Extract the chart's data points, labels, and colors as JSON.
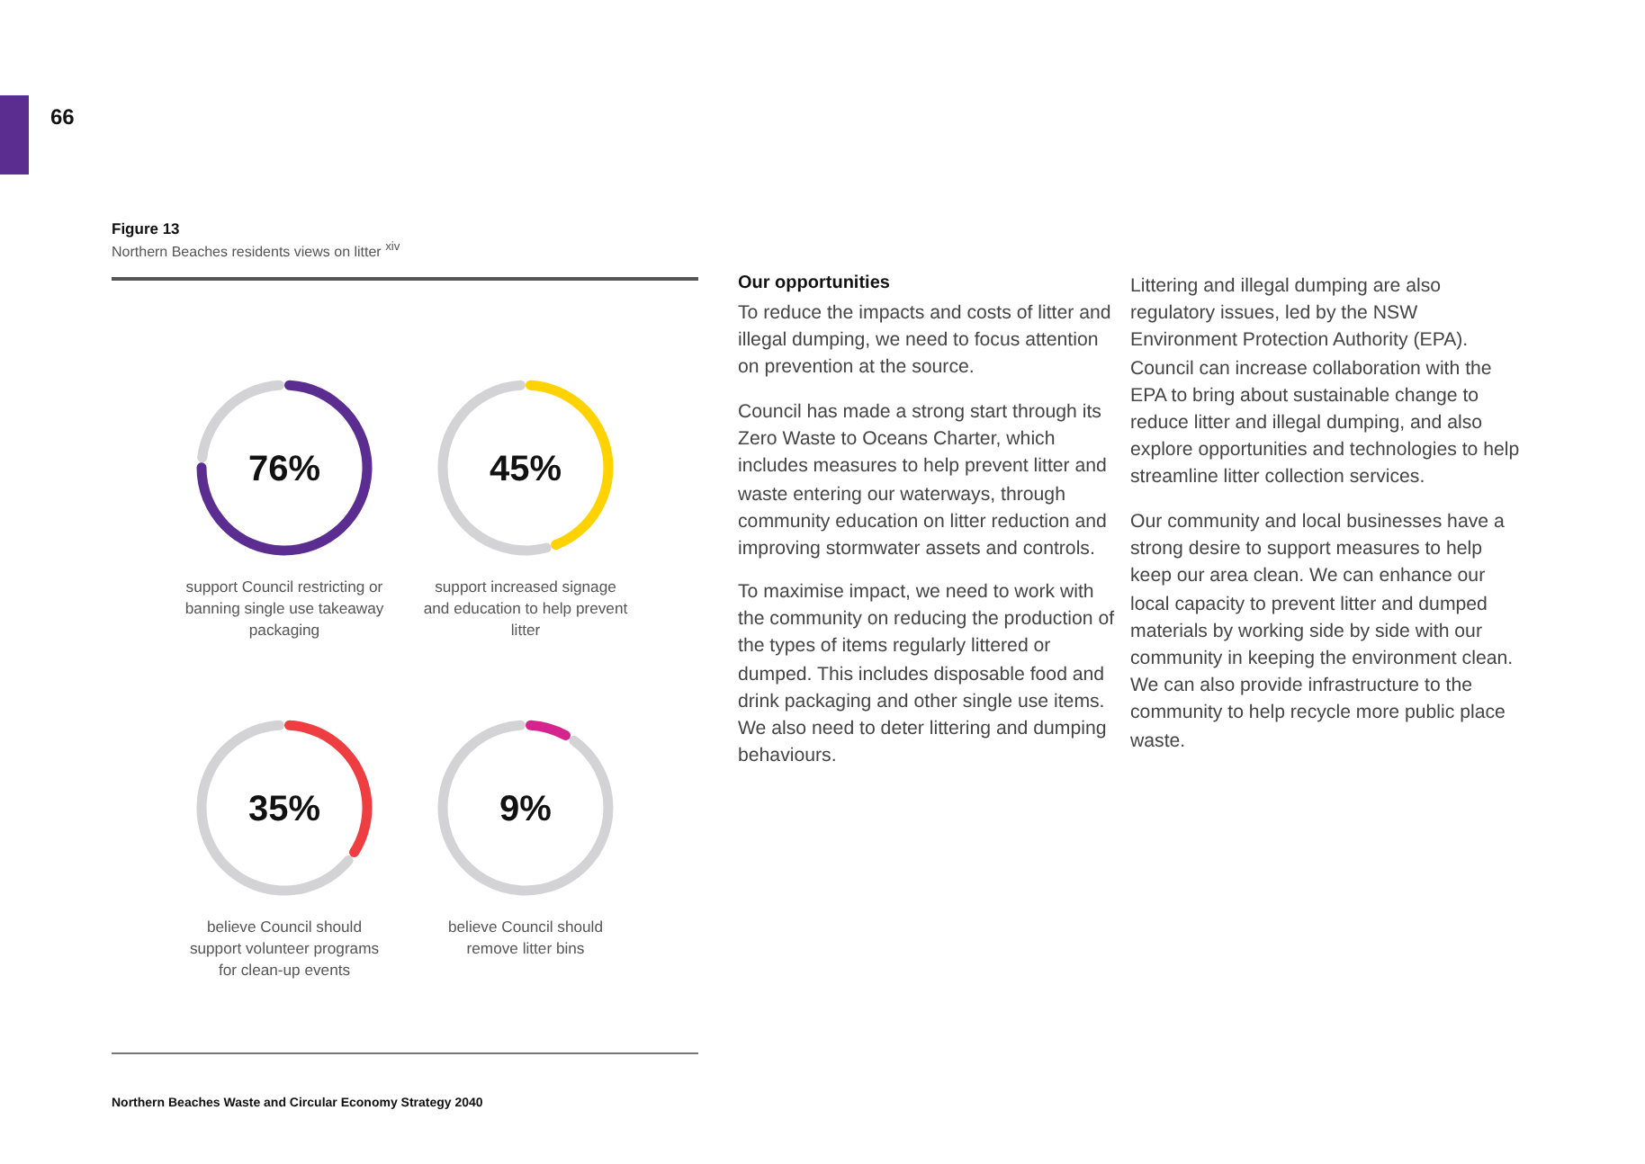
{
  "chart_data": [
    {
      "type": "other",
      "title": "Figure 13",
      "subtitle": "Northern Beaches residents views on litter $^{xiv}$",
      "annotations": [
        "66",
        "Our opportunities",
        "To reduce the impacts and costs of litter and illegal dumping, we need to focus attention on prevention at the source.",
        "Council has made a strong start through its Zero Waste to Oceans Charter, which includes measures to help prevent litter and waste entering our waterways, through community education on litter reduction and improving stormwater assets and controls.",
        "To maximise impact, we need to work with the community on reducing the production of the types of items regularly littered or dumped. This includes disposable food and drink packaging and other single use items.  We also need to deter littering and dumping behaviours.",
        "Littering and illegal dumping are also regulatory issues, led by the NSW Environment Protection Authority (EPA). Council can  increase collaboration with the EPA to bring about sustainable change to reduce litter and illegal dumping, and also explore opportunities and technologies to help streamline litter collection services.",
        "Our community and local businesses have a strong desire to support measures to help keep our area clean.  We can enhance our local capacity to prevent litter and dumped materials by working side by side with our community in keeping the environment clean. We can also provide infrastructure to the community to help recycle more public place waste.",
        "Northern Beaches Waste and Circular Economy Strategy 2040"
      ]
    },
    {
      "type": "donut",
      "title": "support Council restricting or banning single use takeaway packaging",
      "categories": [
        null,
        null
      ],
      "values": [
        76,
        24
      ],
      "colors": [
        "#5b2d90",
        "#d3d3d5"
      ],
      "annotations": [
        "76%"
      ]
    },
    {
      "type": "donut",
      "title": "support increased signage and education to help prevent litter",
      "categories": [
        null,
        null
      ],
      "values": [
        45,
        55
      ],
      "colors": [
        "#ffd200",
        "#d3d3d5"
      ],
      "annotations": [
        "45%"
      ]
    },
    {
      "type": "donut",
      "title": "believe Council should support volunteer programs for clean-up events",
      "categories": [
        null,
        null
      ],
      "values": [
        35,
        65
      ],
      "colors": [
        "#ef3e42",
        "#d3d3d5"
      ],
      "annotations": [
        "35%"
      ]
    },
    {
      "type": "donut",
      "title": "believe Council should remove litter bins",
      "categories": [
        null,
        null
      ],
      "values": [
        9,
        91
      ],
      "colors": [
        "#d6248f",
        "#d3d3d5"
      ],
      "annotations": [
        "9%"
      ]
    }
  ]
}
